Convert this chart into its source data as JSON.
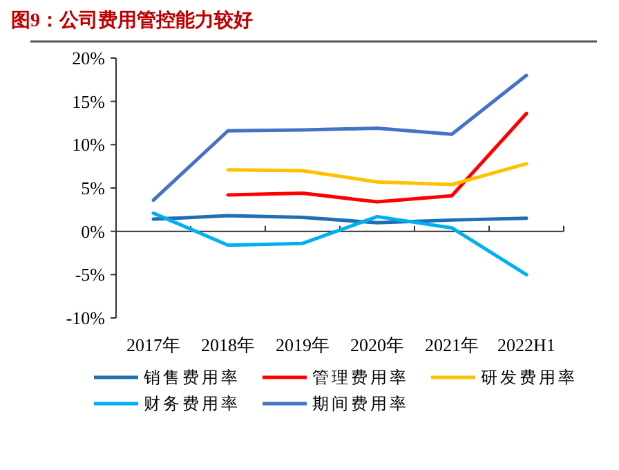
{
  "chart_data": {
    "type": "line",
    "title": "图9：公司费用管控能力较好",
    "categories": [
      "2017年",
      "2018年",
      "2019年",
      "2020年",
      "2021年",
      "2022H1"
    ],
    "series": [
      {
        "name": "销售费用率",
        "color": "#1f6fb5",
        "values": [
          1.4,
          1.8,
          1.6,
          1.0,
          1.3,
          1.5
        ]
      },
      {
        "name": "管理费用率",
        "color": "#ff0000",
        "values": [
          null,
          4.2,
          4.4,
          3.4,
          4.1,
          13.6
        ]
      },
      {
        "name": "研发费用率",
        "color": "#ffc000",
        "values": [
          null,
          7.1,
          7.0,
          5.7,
          5.4,
          7.8
        ]
      },
      {
        "name": "财务费用率",
        "color": "#00b0f0",
        "values": [
          2.1,
          -1.6,
          -1.4,
          1.7,
          0.4,
          -5.0
        ]
      },
      {
        "name": "期间费用率",
        "color": "#4472c4",
        "values": [
          3.6,
          11.6,
          11.7,
          11.9,
          11.2,
          18.0
        ]
      }
    ],
    "ylim": [
      -10,
      20
    ],
    "yticks": [
      {
        "value": -10,
        "label": "-10%"
      },
      {
        "value": -5,
        "label": "-5%"
      },
      {
        "value": 0,
        "label": "0%"
      },
      {
        "value": 5,
        "label": "5%"
      },
      {
        "value": 10,
        "label": "10%"
      },
      {
        "value": 15,
        "label": "15%"
      },
      {
        "value": 20,
        "label": "20%"
      }
    ],
    "legend": "bottom",
    "marker": "none",
    "line_style": "solid"
  }
}
